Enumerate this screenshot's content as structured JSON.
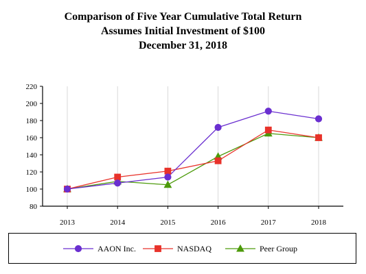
{
  "title_lines": [
    "Comparison of Five Year Cumulative Total Return",
    "Assumes Initial Investment of $100",
    "December 31, 2018"
  ],
  "chart_data": {
    "type": "line",
    "title": "Comparison of Five Year Cumulative Total Return",
    "subtitle": "Assumes Initial Investment of $100 December 31, 2018",
    "xlabel": "",
    "ylabel": "",
    "categories": [
      "2013",
      "2014",
      "2015",
      "2016",
      "2017",
      "2018"
    ],
    "ylim": [
      80,
      220
    ],
    "yticks": [
      80,
      100,
      120,
      140,
      160,
      180,
      200,
      220
    ],
    "grid": "vertical",
    "legend_position": "bottom",
    "series": [
      {
        "name": "AAON Inc.",
        "values": [
          100,
          107,
          114,
          172,
          191,
          182
        ],
        "color": "#6a2fd0",
        "marker": "circle"
      },
      {
        "name": "NASDAQ",
        "values": [
          100,
          114,
          121,
          133,
          169,
          160
        ],
        "color": "#e8322a",
        "marker": "square"
      },
      {
        "name": "Peer Group",
        "values": [
          100,
          109,
          105,
          138,
          165,
          160
        ],
        "color": "#4c9a0a",
        "marker": "triangle"
      }
    ]
  }
}
